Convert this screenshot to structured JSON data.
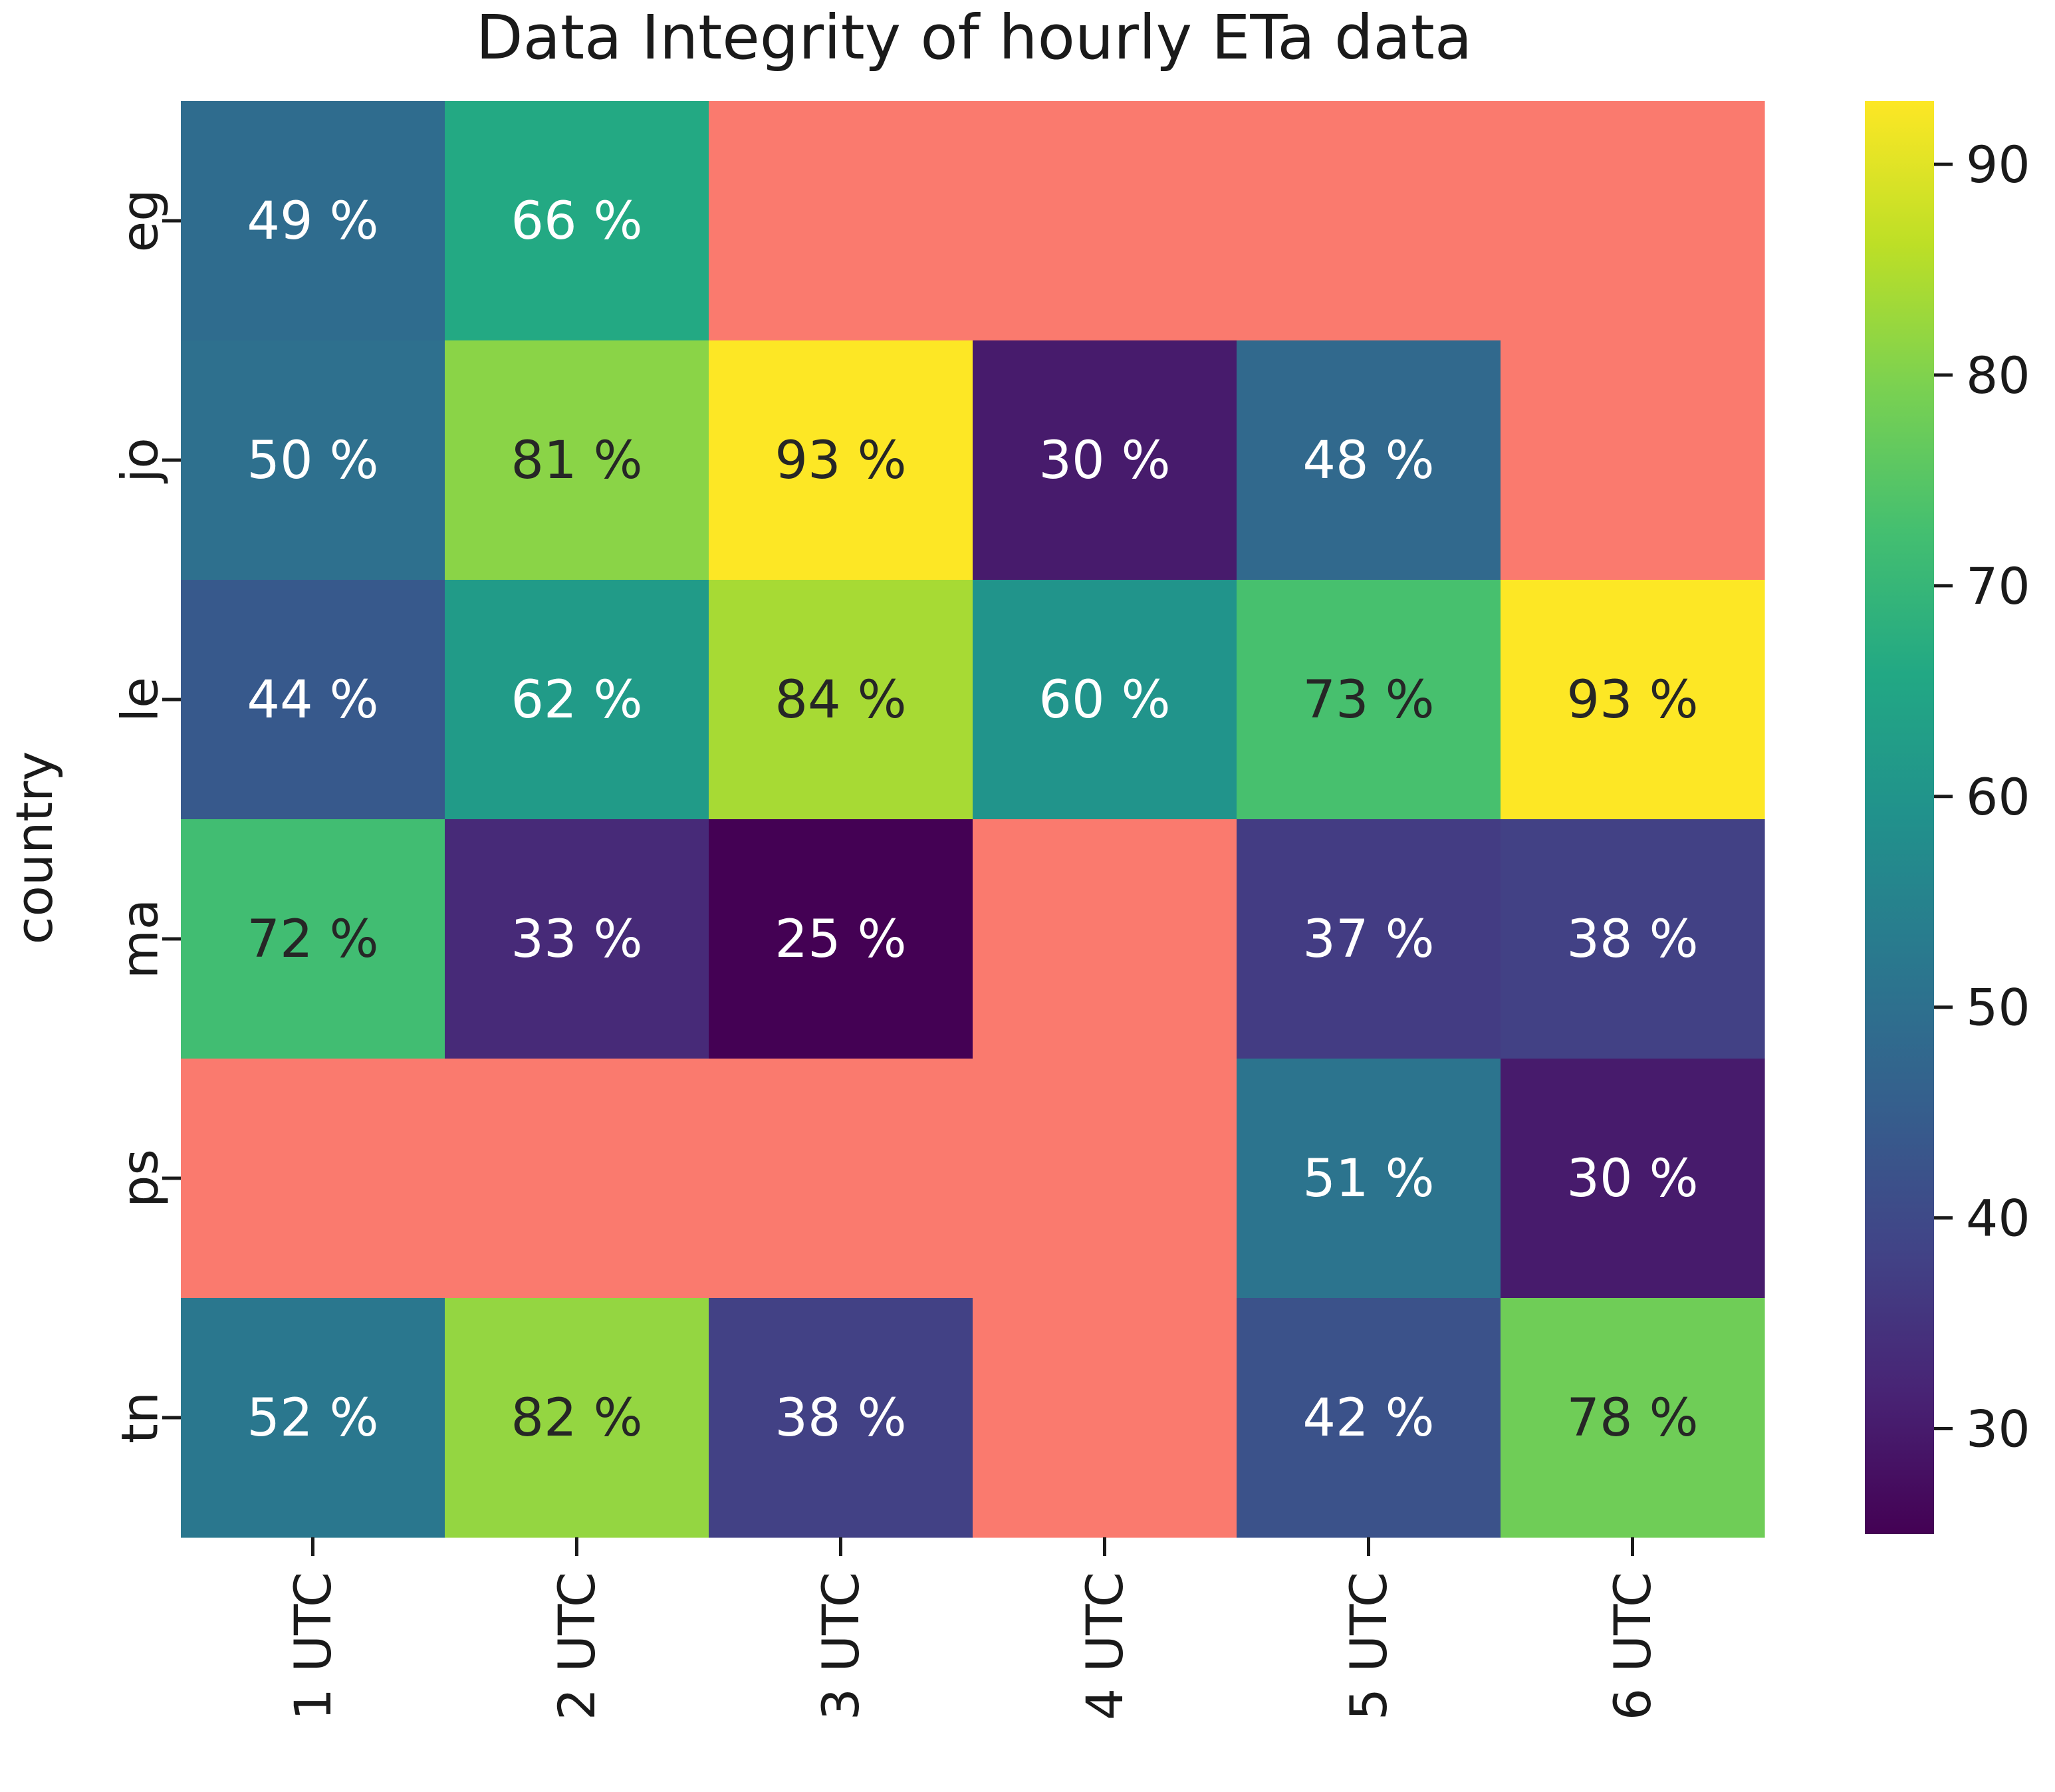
{
  "chart_data": {
    "type": "heatmap",
    "title": "Data Integrity of hourly ETa data",
    "xlabel": "",
    "ylabel": "country",
    "x_categories": [
      "1 UTC",
      "2 UTC",
      "3 UTC",
      "4 UTC",
      "5 UTC",
      "6 UTC"
    ],
    "y_categories": [
      "eg",
      "jo",
      "le",
      "ma",
      "ps",
      "tn"
    ],
    "values": [
      [
        49,
        66,
        null,
        null,
        null,
        null
      ],
      [
        50,
        81,
        93,
        30,
        48,
        null
      ],
      [
        44,
        62,
        84,
        60,
        73,
        93
      ],
      [
        72,
        33,
        25,
        null,
        37,
        38
      ],
      [
        null,
        null,
        null,
        null,
        51,
        30
      ],
      [
        52,
        82,
        38,
        null,
        42,
        78
      ]
    ],
    "cell_labels": [
      [
        "49 %",
        "66 %",
        "",
        "",
        "",
        ""
      ],
      [
        "50 %",
        "81 %",
        "93 %",
        "30 %",
        "48 %",
        ""
      ],
      [
        "44 %",
        "62 %",
        "84 %",
        "60 %",
        "73 %",
        "93 %"
      ],
      [
        "72 %",
        "33 %",
        "25 %",
        "",
        "37 %",
        "38 %"
      ],
      [
        "",
        "",
        "",
        "",
        "51 %",
        "30 %"
      ],
      [
        "52 %",
        "82 %",
        "38 %",
        "",
        "42 %",
        "78 %"
      ]
    ],
    "missing_color": "#fa7a6e",
    "colormap": "viridis",
    "vmin": 25,
    "vmax": 93,
    "colorbar_ticks": [
      30,
      40,
      50,
      60,
      70,
      80,
      90
    ]
  }
}
